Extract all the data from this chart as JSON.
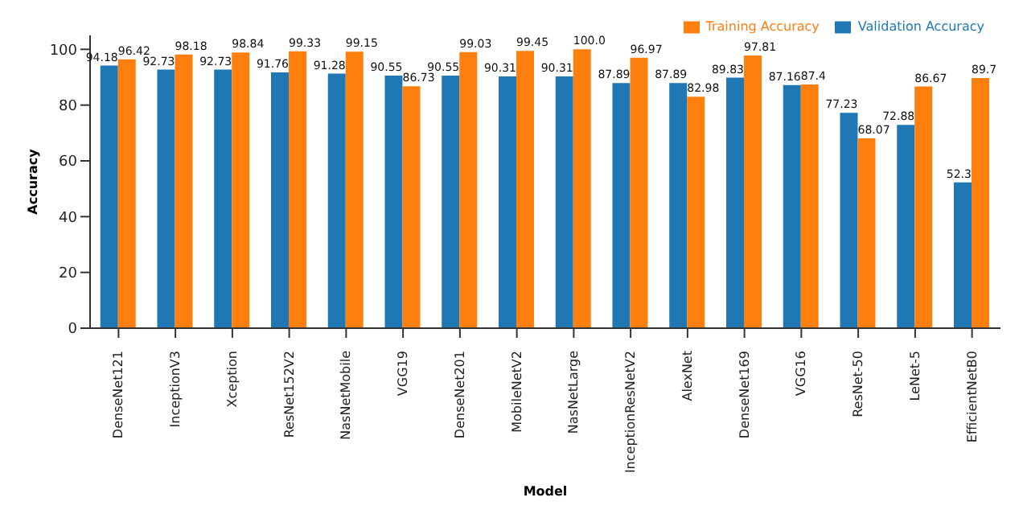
{
  "chart_data": {
    "type": "bar",
    "xlabel": "Model",
    "ylabel": "Accuracy",
    "categories": [
      "DenseNet121",
      "InceptionV3",
      "Xception",
      "ResNet152V2",
      "NasNetMobile",
      "VGG19",
      "DenseNet201",
      "MobileNetV2",
      "NasNetLarge",
      "InceptionResNetV2",
      "AlexNet",
      "DenseNet169",
      "VGG16",
      "ResNet-50",
      "LeNet-5",
      "EfficientNetB0"
    ],
    "series": [
      {
        "name": "Validation Accuracy",
        "color": "#1f77b4",
        "values": [
          94.18,
          92.73,
          92.73,
          91.76,
          91.28,
          90.55,
          90.55,
          90.31,
          90.31,
          87.89,
          87.89,
          89.83,
          87.16,
          77.23,
          72.88,
          52.3
        ],
        "value_labels": [
          "94.18",
          "92.73",
          "92.73",
          "91.76",
          "91.28",
          "90.55",
          "90.55",
          "90.31",
          "90.31",
          "87.89",
          "87.89",
          "89.83",
          "87.16",
          "77.23",
          "72.88",
          "52.3"
        ]
      },
      {
        "name": "Training Accuracy",
        "color": "#ff7f0e",
        "values": [
          96.42,
          98.18,
          98.84,
          99.33,
          99.15,
          86.73,
          99.03,
          99.45,
          100.0,
          96.97,
          82.98,
          97.81,
          87.4,
          68.07,
          86.67,
          89.7
        ],
        "value_labels": [
          "96.42",
          "98.18",
          "98.84",
          "99.33",
          "99.15",
          "86.73",
          "99.03",
          "99.45",
          "100.0",
          "96.97",
          "82.98",
          "97.81",
          "87.4",
          "68.07",
          "86.67",
          "89.7"
        ]
      }
    ],
    "ylim": [
      0,
      105
    ],
    "yticks": [
      0,
      20,
      40,
      60,
      80,
      100
    ],
    "grid": false,
    "legend": "top right"
  }
}
